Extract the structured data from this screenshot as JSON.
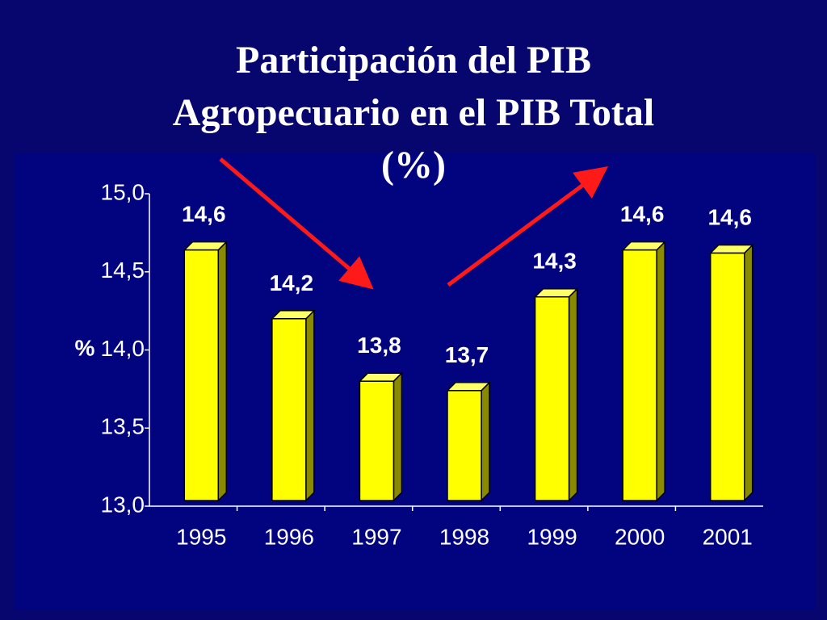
{
  "chart_data": {
    "type": "bar3d",
    "title": "Participación del PIB Agropecuario en el PIB Total (%)",
    "ylabel": "%",
    "categories": [
      "1995",
      "1996",
      "1997",
      "1998",
      "1999",
      "2000",
      "2001"
    ],
    "values": [
      14.64,
      14.2,
      13.8,
      13.74,
      14.34,
      14.64,
      14.62
    ],
    "value_labels": [
      "14,6",
      "14,2",
      "13,8",
      "13,7",
      "14,3",
      "14,6",
      "14,6"
    ],
    "color": "#ffff00",
    "ylim": [
      13.0,
      15.0
    ],
    "yticks": [
      {
        "value": 13.0,
        "label": "13,0"
      },
      {
        "value": 13.5,
        "label": "13,5"
      },
      {
        "value": 14.0,
        "label": "14,0"
      },
      {
        "value": 14.5,
        "label": "14,5"
      },
      {
        "value": 15.0,
        "label": "15,0"
      }
    ]
  }
}
